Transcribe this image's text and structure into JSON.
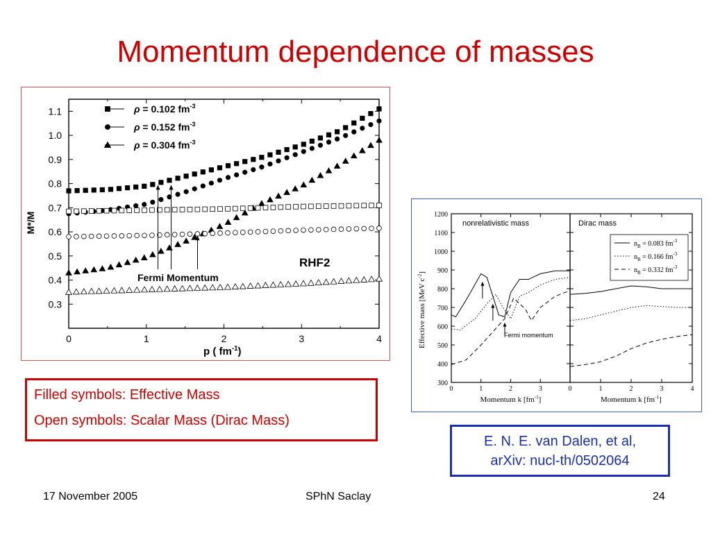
{
  "slide": {
    "title": "Momentum dependence of masses",
    "notes": [
      "Filled symbols: Effective Mass",
      "Open symbols: Scalar Mass (Dirac Mass)"
    ],
    "reference": [
      "E. N. E. van Dalen, et al,",
      "arXiv: nucl-th/0502064"
    ],
    "footer": {
      "date": "17 November 2005",
      "venue": "SPhN Saclay",
      "page": "24"
    },
    "colors": {
      "title": "#cc0000",
      "note_border": "#cc0000",
      "reference_border": "#1a2fb0",
      "reference_text": "#1a2fb0"
    }
  },
  "chart_data": [
    {
      "type": "scatter",
      "xlabel": "p ( fm",
      "xlabel_sup": "-1",
      "xlabel_tail": ")",
      "ylabel": "M*/M",
      "xlim": [
        0,
        4
      ],
      "ylim": [
        0.2,
        1.15
      ],
      "x_ticks": [
        "0",
        "1",
        "2",
        "3",
        "4"
      ],
      "y_ticks": [
        "0.3",
        "0.4",
        "0.5",
        "0.6",
        "0.7",
        "0.8",
        "0.9",
        "1.0",
        "1.1"
      ],
      "grid": false,
      "legend_position": "top-left",
      "legend": [
        {
          "symbol": "ρ",
          "text": " = 0.102 fm",
          "sup": "-3",
          "marker": "square"
        },
        {
          "symbol": "ρ",
          "text": " = 0.152 fm",
          "sup": "-3",
          "marker": "circle"
        },
        {
          "symbol": "ρ",
          "text": " = 0.304 fm",
          "sup": "-3",
          "marker": "triangle"
        }
      ],
      "annotations": [
        "RHF2",
        "Fermi Momentum"
      ],
      "fermi_momenta": [
        1.15,
        1.32,
        1.66
      ],
      "series": [
        {
          "marker": "square",
          "filled": true,
          "x": [
            0.0,
            0.5,
            1.0,
            1.5,
            2.0,
            2.5,
            3.0,
            3.5,
            4.0
          ],
          "y": [
            0.77,
            0.775,
            0.79,
            0.83,
            0.87,
            0.91,
            0.96,
            1.02,
            1.11
          ]
        },
        {
          "marker": "circle",
          "filled": true,
          "x": [
            0.0,
            0.5,
            1.0,
            1.5,
            2.0,
            2.5,
            3.0,
            3.5,
            4.0
          ],
          "y": [
            0.675,
            0.69,
            0.715,
            0.765,
            0.82,
            0.87,
            0.93,
            0.99,
            1.06
          ]
        },
        {
          "marker": "triangle",
          "filled": true,
          "x": [
            0.0,
            0.5,
            1.0,
            1.5,
            2.0,
            2.5,
            3.0,
            3.5,
            4.0
          ],
          "y": [
            0.43,
            0.45,
            0.495,
            0.56,
            0.63,
            0.72,
            0.79,
            0.88,
            0.98
          ]
        },
        {
          "marker": "square",
          "filled": false,
          "x": [
            0.0,
            1.0,
            2.0,
            3.0,
            4.0
          ],
          "y": [
            0.685,
            0.69,
            0.695,
            0.705,
            0.71
          ]
        },
        {
          "marker": "circle",
          "filled": false,
          "x": [
            0.0,
            1.0,
            2.0,
            3.0,
            4.0
          ],
          "y": [
            0.58,
            0.585,
            0.595,
            0.607,
            0.615
          ]
        },
        {
          "marker": "triangle",
          "filled": false,
          "x": [
            0.0,
            1.0,
            2.0,
            3.0,
            4.0
          ],
          "y": [
            0.35,
            0.36,
            0.37,
            0.385,
            0.405
          ]
        }
      ]
    },
    {
      "type": "line",
      "ylabel": "Effective mass [MeV c",
      "ylabel_sup": "-2",
      "ylabel_tail": "]",
      "xlabel": "Momentum k [fm",
      "xlabel_sup": "-1",
      "xlabel_tail": "]",
      "ylim": [
        300,
        1200
      ],
      "xlim": [
        0,
        4
      ],
      "y_ticks": [
        "300",
        "400",
        "500",
        "600",
        "700",
        "800",
        "900",
        "1000",
        "1100",
        "1200"
      ],
      "panels": [
        {
          "title": "nonrelativistic mass",
          "x_ticks": [
            "0",
            "1",
            "2",
            "3"
          ],
          "annotation": "Fermi momentum",
          "series": [
            {
              "style": "solid",
              "x": [
                0,
                0.15,
                0.5,
                1.0,
                1.2,
                1.6,
                1.8,
                2.0,
                2.3,
                2.6,
                3.0,
                3.5,
                4.0
              ],
              "y": [
                660,
                650,
                740,
                880,
                860,
                660,
                650,
                780,
                850,
                850,
                880,
                895,
                895
              ]
            },
            {
              "style": "dotted",
              "x": [
                0,
                0.3,
                0.8,
                1.2,
                1.5,
                1.7,
                2.0,
                2.3,
                2.6,
                3.0,
                3.5,
                4.0
              ],
              "y": [
                585,
                580,
                640,
                720,
                770,
                710,
                640,
                760,
                780,
                820,
                850,
                860
              ]
            },
            {
              "style": "dashed",
              "x": [
                0,
                0.5,
                1.0,
                1.4,
                1.8,
                2.1,
                2.5,
                2.7,
                3.0,
                3.5,
                4.0
              ],
              "y": [
                395,
                420,
                500,
                570,
                640,
                750,
                690,
                630,
                700,
                760,
                790
              ]
            }
          ]
        },
        {
          "title": "Dirac mass",
          "x_ticks": [
            "0",
            "1",
            "2",
            "3",
            "4"
          ],
          "legend": [
            {
              "style": "solid",
              "label": "n",
              "sub": "B",
              "text": " = 0.083 fm",
              "sup": "-3"
            },
            {
              "style": "dotted",
              "label": "n",
              "sub": "B",
              "text": " = 0.166 fm",
              "sup": "-3"
            },
            {
              "style": "dashed",
              "label": "n",
              "sub": "B",
              "text": " = 0.332 fm",
              "sup": "-3"
            }
          ],
          "series": [
            {
              "style": "solid",
              "x": [
                0,
                0.5,
                1.0,
                1.5,
                2.0,
                2.5,
                3.0,
                3.5,
                4.0
              ],
              "y": [
                770,
                775,
                785,
                800,
                815,
                810,
                800,
                800,
                800
              ]
            },
            {
              "style": "dotted",
              "x": [
                0,
                0.5,
                1.0,
                1.5,
                2.0,
                2.5,
                3.0,
                3.5,
                4.0
              ],
              "y": [
                630,
                640,
                660,
                680,
                700,
                710,
                705,
                700,
                700
              ]
            },
            {
              "style": "dashed",
              "x": [
                0,
                0.5,
                1.0,
                1.5,
                2.0,
                2.5,
                3.0,
                3.5,
                4.0
              ],
              "y": [
                385,
                395,
                410,
                440,
                480,
                510,
                530,
                545,
                555
              ]
            }
          ]
        }
      ]
    }
  ]
}
